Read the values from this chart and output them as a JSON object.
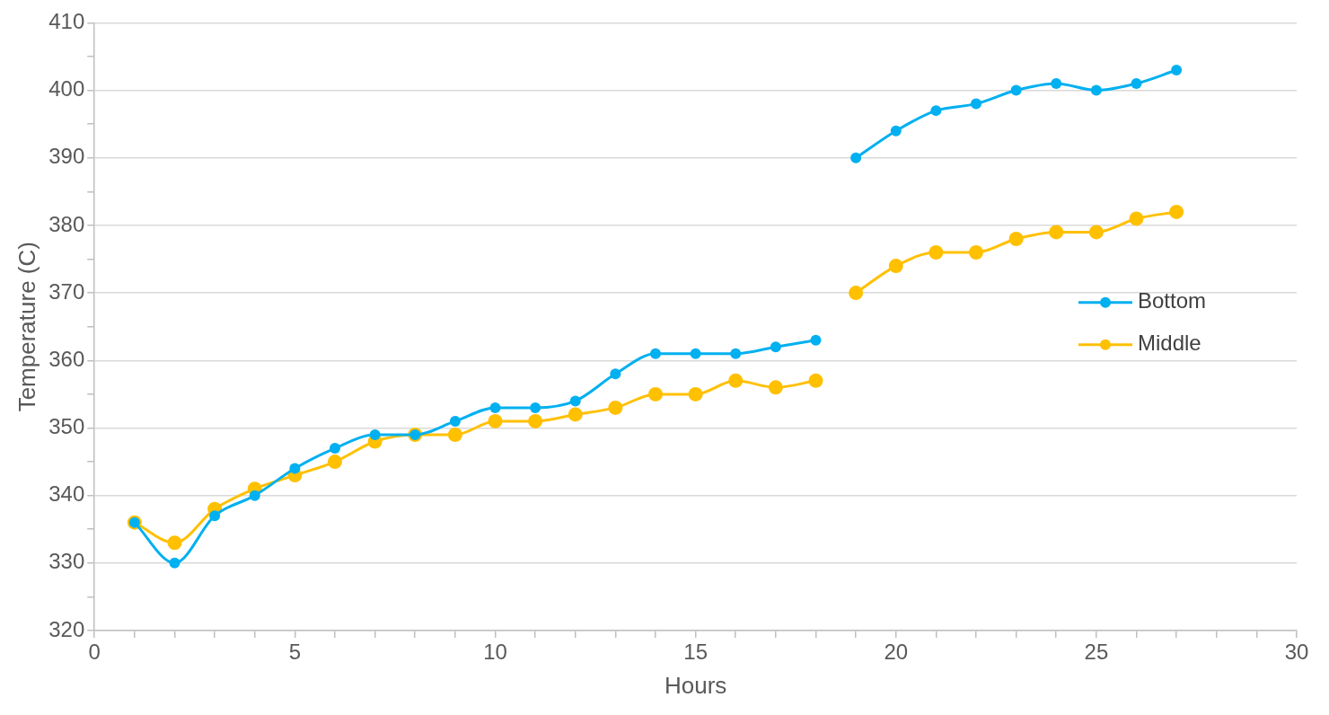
{
  "chart_data": {
    "type": "line",
    "xlabel": "Hours",
    "ylabel": "Temperature (C)",
    "x": [
      1,
      2,
      3,
      4,
      5,
      6,
      7,
      8,
      9,
      10,
      11,
      12,
      13,
      14,
      15,
      16,
      17,
      18,
      18.5,
      19,
      20,
      21,
      22,
      23,
      24,
      25,
      26,
      27
    ],
    "series": [
      {
        "name": "Bottom",
        "color": "#00b0f0",
        "values": [
          336,
          330,
          337,
          340,
          344,
          347,
          349,
          349,
          351,
          353,
          353,
          354,
          358,
          361,
          361,
          361,
          362,
          363,
          null,
          390,
          394,
          397,
          398,
          400,
          401,
          400,
          401,
          403
        ]
      },
      {
        "name": "Middle",
        "color": "#ffc000",
        "values": [
          336,
          333,
          338,
          341,
          343,
          345,
          348,
          349,
          349,
          351,
          351,
          352,
          353,
          355,
          355,
          357,
          356,
          357,
          null,
          370,
          374,
          376,
          376,
          378,
          379,
          379,
          381,
          382
        ]
      }
    ],
    "xlim": [
      0,
      30
    ],
    "ylim": [
      320,
      410
    ],
    "xticks": [
      0,
      {
        "value": 1,
        "label": null
      },
      {
        "value": 2,
        "label": null
      },
      {
        "value": 3,
        "label": null
      },
      {
        "value": 4,
        "label": null
      },
      5,
      {
        "value": 6,
        "label": null
      },
      {
        "value": 7,
        "label": null
      },
      {
        "value": 8,
        "label": null
      },
      {
        "value": 9,
        "label": null
      },
      10,
      {
        "value": 11,
        "label": null
      },
      {
        "value": 12,
        "label": null
      },
      {
        "value": 13,
        "label": null
      },
      {
        "value": 14,
        "label": null
      },
      15,
      {
        "value": 16,
        "label": null
      },
      {
        "value": 17,
        "label": null
      },
      {
        "value": 18,
        "label": null
      },
      {
        "value": 19,
        "label": null
      },
      20,
      {
        "value": 21,
        "label": null
      },
      {
        "value": 22,
        "label": null
      },
      {
        "value": 23,
        "label": null
      },
      {
        "value": 24,
        "label": null
      },
      25,
      {
        "value": 26,
        "label": null
      },
      {
        "value": 27,
        "label": null
      },
      {
        "value": 28,
        "label": null
      },
      {
        "value": 29,
        "label": null
      },
      30
    ],
    "yticks": [
      320,
      {
        "value": 325,
        "label": null
      },
      330,
      {
        "value": 335,
        "label": null
      },
      340,
      {
        "value": 345,
        "label": null
      },
      350,
      {
        "value": 355,
        "label": null
      },
      360,
      {
        "value": 365,
        "label": null
      },
      370,
      {
        "value": 375,
        "label": null
      },
      380,
      {
        "value": 385,
        "label": null
      },
      390,
      {
        "value": 395,
        "label": null
      },
      400,
      {
        "value": 405,
        "label": null
      },
      410
    ],
    "grid": "y",
    "legend": "right",
    "marker": "circle",
    "line_style": "solid"
  }
}
